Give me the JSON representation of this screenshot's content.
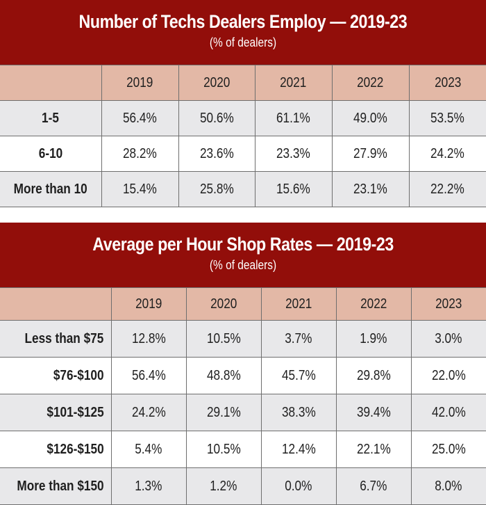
{
  "chart_data": [
    {
      "type": "table",
      "title": "Number of Techs Dealers Employ — 2019-23",
      "subtitle": "(% of dealers)",
      "columns": [
        "2019",
        "2020",
        "2021",
        "2022",
        "2023"
      ],
      "rows": [
        {
          "label": "1-5",
          "values": [
            "56.4%",
            "50.6%",
            "61.1%",
            "49.0%",
            "53.5%"
          ]
        },
        {
          "label": "6-10",
          "values": [
            "28.2%",
            "23.6%",
            "23.3%",
            "27.9%",
            "24.2%"
          ]
        },
        {
          "label": "More than 10",
          "values": [
            "15.4%",
            "25.8%",
            "15.6%",
            "23.1%",
            "22.2%"
          ]
        }
      ]
    },
    {
      "type": "table",
      "title": "Average per Hour Shop Rates — 2019-23",
      "subtitle": "(% of dealers)",
      "columns": [
        "2019",
        "2020",
        "2021",
        "2022",
        "2023"
      ],
      "rows": [
        {
          "label": "Less than $75",
          "values": [
            "12.8%",
            "10.5%",
            "3.7%",
            "1.9%",
            "3.0%"
          ]
        },
        {
          "label": "$76-$100",
          "values": [
            "56.4%",
            "48.8%",
            "45.7%",
            "29.8%",
            "22.0%"
          ]
        },
        {
          "label": "$101-$125",
          "values": [
            "24.2%",
            "29.1%",
            "38.3%",
            "39.4%",
            "42.0%"
          ]
        },
        {
          "label": "$126-$150",
          "values": [
            "5.4%",
            "10.5%",
            "12.4%",
            "22.1%",
            "25.0%"
          ]
        },
        {
          "label": "More than $150",
          "values": [
            "1.3%",
            "1.2%",
            "0.0%",
            "6.7%",
            "8.0%"
          ]
        }
      ]
    }
  ],
  "colors": {
    "title_bg": "#920e0a",
    "title_text": "#ffffff",
    "header_bg": "#e3b8a6",
    "shaded_row": "#e8e8ea",
    "plain_row": "#ffffff",
    "grid": "#6e6e6e"
  }
}
